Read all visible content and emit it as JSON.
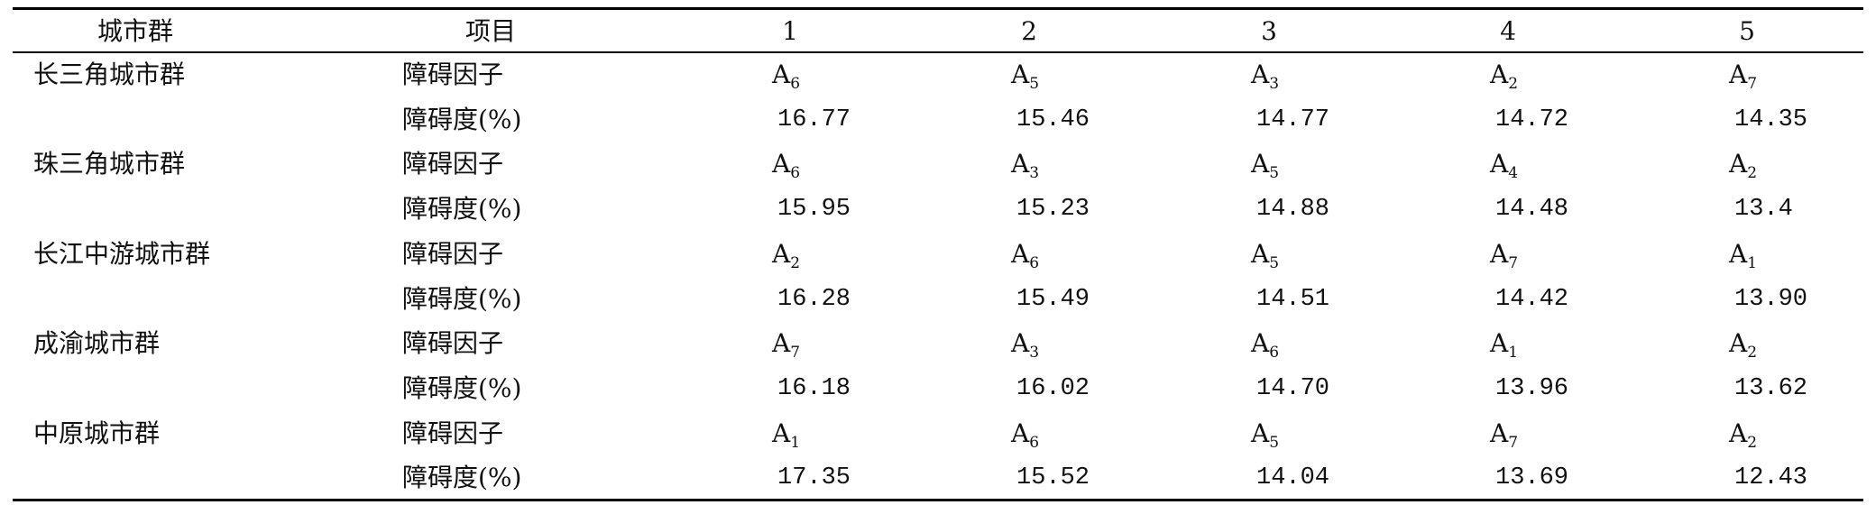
{
  "table": {
    "header": [
      "城市群",
      "项目",
      "1",
      "2",
      "3",
      "4",
      "5"
    ],
    "groups": [
      {
        "name": "长三角城市群",
        "factor_label": "障碍因子",
        "degree_label": "障碍度(%)",
        "factors": [
          "A6",
          "A5",
          "A3",
          "A2",
          "A7"
        ],
        "degrees": [
          "16.77",
          "15.46",
          "14.77",
          "14.72",
          "14.35"
        ]
      },
      {
        "name": "珠三角城市群",
        "factor_label": "障碍因子",
        "degree_label": "障碍度(%)",
        "factors": [
          "A6",
          "A3",
          "A5",
          "A4",
          "A2"
        ],
        "degrees": [
          "15.95",
          "15.23",
          "14.88",
          "14.48",
          "13.4"
        ]
      },
      {
        "name": "长江中游城市群",
        "factor_label": "障碍因子",
        "degree_label": "障碍度(%)",
        "factors": [
          "A2",
          "A6",
          "A5",
          "A7",
          "A1"
        ],
        "degrees": [
          "16.28",
          "15.49",
          "14.51",
          "14.42",
          "13.90"
        ]
      },
      {
        "name": "成渝城市群",
        "factor_label": "障碍因子",
        "degree_label": "障碍度(%)",
        "factors": [
          "A7",
          "A3",
          "A6",
          "A1",
          "A2"
        ],
        "degrees": [
          "16.18",
          "16.02",
          "14.70",
          "13.96",
          "13.62"
        ]
      },
      {
        "name": "中原城市群",
        "factor_label": "障碍因子",
        "degree_label": "障碍度(%)",
        "factors": [
          "A1",
          "A6",
          "A5",
          "A7",
          "A2"
        ],
        "degrees": [
          "17.35",
          "15.52",
          "14.04",
          "13.69",
          "12.43"
        ]
      }
    ]
  }
}
